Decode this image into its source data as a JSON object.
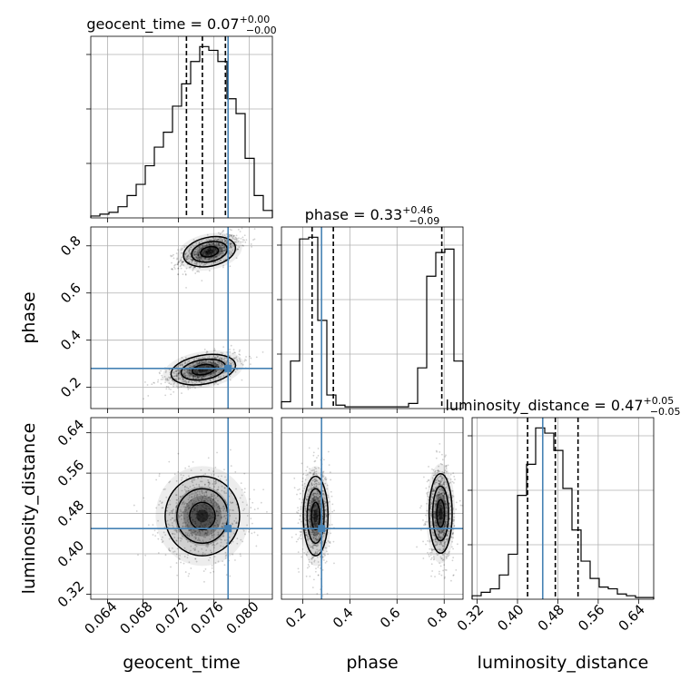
{
  "chart_data": {
    "type": "corner",
    "parameters": [
      "geocent_time",
      "phase",
      "luminosity_distance"
    ],
    "titles": [
      {
        "param": "geocent_time",
        "text": "geocent_time = 0.07",
        "sup": "+0.00",
        "sub": "−0.00"
      },
      {
        "param": "phase",
        "text": "phase = 0.33",
        "sup": "+0.46",
        "sub": "−0.09"
      },
      {
        "param": "luminosity_distance",
        "text": "luminosity_distance = 0.47",
        "sup": "+0.05",
        "sub": "−0.05"
      }
    ],
    "ranges": {
      "geocent_time": [
        0.0621,
        0.0826
      ],
      "phase": [
        0.11,
        0.88
      ],
      "luminosity_distance": [
        0.31,
        0.67
      ]
    },
    "ticks": {
      "geocent_time": [
        "0.064",
        "0.068",
        "0.072",
        "0.076",
        "0.080"
      ],
      "phase": [
        "0.2",
        "0.4",
        "0.6",
        "0.8"
      ],
      "luminosity_distance": [
        "0.32",
        "0.40",
        "0.48",
        "0.56",
        "0.64"
      ]
    },
    "truths": {
      "geocent_time": 0.0776,
      "phase": 0.28,
      "luminosity_distance": 0.45
    },
    "quantiles": {
      "geocent_time": [
        0.0729,
        0.0747,
        0.0773
      ],
      "phase": [
        0.24,
        0.33,
        0.79
      ],
      "luminosity_distance": [
        0.42,
        0.475,
        0.52
      ]
    },
    "histograms": {
      "geocent_time": {
        "edges_from": 0.0621,
        "bin_width": 0.001025,
        "counts": [
          1,
          2,
          3,
          6,
          12,
          18,
          28,
          38,
          46,
          60,
          72,
          84,
          92,
          90,
          84,
          64,
          56,
          32,
          12,
          4
        ]
      },
      "phase": {
        "edges_from": 0.11,
        "bin_width": 0.0385,
        "counts": [
          4,
          28,
          100,
          101,
          52,
          8,
          2,
          1,
          1,
          1,
          1,
          1,
          1,
          1,
          3,
          24,
          78,
          92,
          94,
          28
        ]
      },
      "luminosity_distance": {
        "edges_from": 0.31,
        "bin_width": 0.018,
        "counts": [
          2,
          4,
          6,
          14,
          26,
          60,
          78,
          99,
          96,
          86,
          64,
          40,
          22,
          12,
          7,
          6,
          3,
          2,
          1,
          1
        ]
      }
    },
    "contours_2d": [
      {
        "x": "geocent_time",
        "y": "phase",
        "modes": [
          {
            "cx": 0.0755,
            "cy": 0.775,
            "sx": 0.0017,
            "sy": 0.035,
            "rho": 0.55
          },
          {
            "cx": 0.0748,
            "cy": 0.275,
            "sx": 0.0021,
            "sy": 0.035,
            "rho": 0.55
          }
        ]
      },
      {
        "x": "geocent_time",
        "y": "luminosity_distance",
        "modes": [
          {
            "cx": 0.0747,
            "cy": 0.475,
            "sx": 0.0024,
            "sy": 0.045,
            "rho": 0.0
          }
        ]
      },
      {
        "x": "phase",
        "y": "luminosity_distance",
        "modes": [
          {
            "cx": 0.255,
            "cy": 0.475,
            "sx": 0.03,
            "sy": 0.045,
            "rho": 0.0
          },
          {
            "cx": 0.785,
            "cy": 0.48,
            "sx": 0.028,
            "sy": 0.045,
            "rho": 0.0
          }
        ]
      }
    ],
    "truth_color": "#4682b4",
    "grid": true
  }
}
